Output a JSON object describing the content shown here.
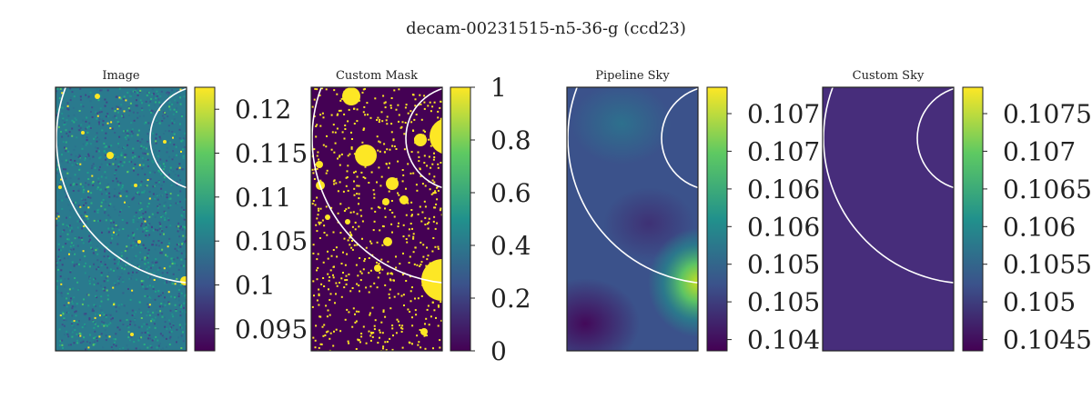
{
  "figure": {
    "title": "decam-00231515-n5-36-g (ccd23)"
  },
  "colormap": [
    "#440154",
    "#3b528b",
    "#21918c",
    "#5ec962",
    "#fde725"
  ],
  "colors": {
    "ring": "#ffffff",
    "frame": "#222222",
    "mask_background": "#440154",
    "mask_foreground": "#fde725"
  },
  "chart_data": [
    {
      "type": "heatmap",
      "title": "Image",
      "description_style": "noisy-image",
      "colorbar": {
        "range": [
          0.0925,
          0.1225
        ],
        "ticks": [
          0.12,
          0.115,
          0.11,
          0.105,
          0.1,
          0.095
        ]
      }
    },
    {
      "type": "heatmap",
      "title": "Custom Mask",
      "description_style": "binary-mask",
      "colorbar": {
        "range": [
          0,
          1
        ],
        "ticks": [
          1,
          0.8,
          0.6,
          0.4,
          0.2,
          0
        ]
      }
    },
    {
      "type": "heatmap",
      "title": "Pipeline Sky",
      "description_style": "smooth-sky",
      "colorbar": {
        "range": [
          0.10435,
          0.10785
        ],
        "ticks": [
          0.1075,
          0.107,
          0.1065,
          0.106,
          0.1055,
          0.105,
          0.1045
        ]
      }
    },
    {
      "type": "heatmap",
      "title": "Custom Sky",
      "description_style": "flat-sky",
      "colorbar": {
        "range": [
          0.10435,
          0.10785
        ],
        "ticks": [
          0.1075,
          0.107,
          0.1065,
          0.106,
          0.1055,
          0.105,
          0.1045
        ]
      }
    }
  ]
}
